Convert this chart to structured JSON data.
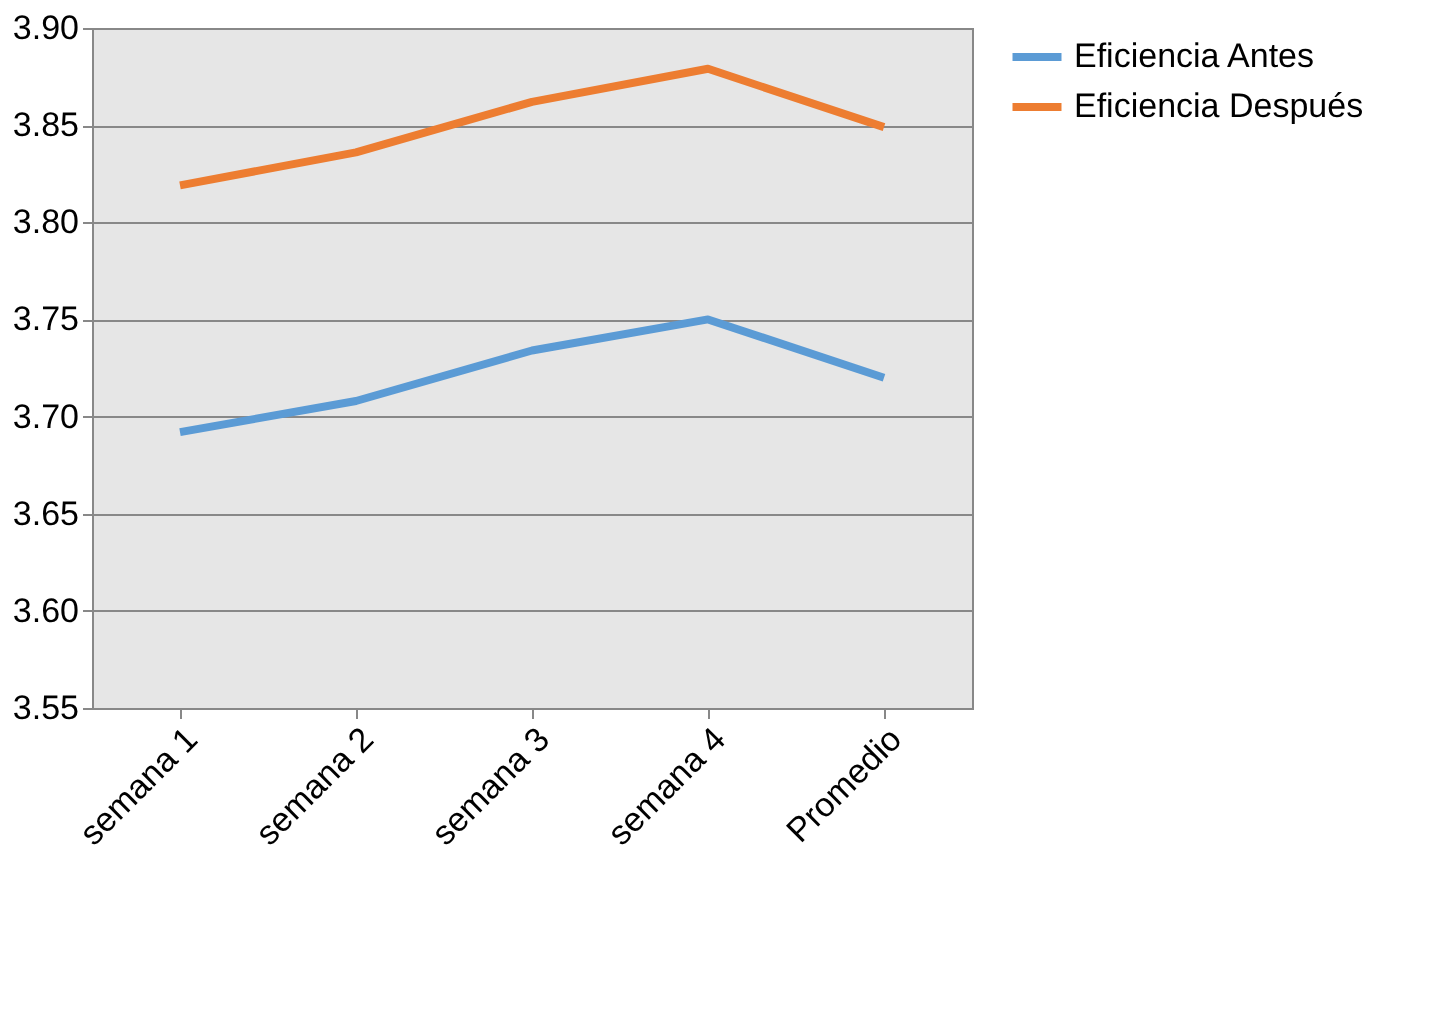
{
  "chart_data": {
    "type": "line",
    "categories": [
      "semana 1",
      "semana 2",
      "semana 3",
      "semana 4",
      "Promedio"
    ],
    "series": [
      {
        "name": "Eficiencia Antes",
        "color": "#5b9bd5",
        "values": [
          3.692,
          3.708,
          3.734,
          3.75,
          3.72
        ]
      },
      {
        "name": "Eficiencia Después",
        "color": "#ed7d31",
        "values": [
          3.819,
          3.836,
          3.862,
          3.879,
          3.849
        ]
      }
    ],
    "ylim": [
      3.55,
      3.9
    ],
    "yticks": [
      {
        "value": 3.55,
        "label": "3.55"
      },
      {
        "value": 3.6,
        "label": "3.60"
      },
      {
        "value": 3.65,
        "label": "3.65"
      },
      {
        "value": 3.7,
        "label": "3.70"
      },
      {
        "value": 3.75,
        "label": "3.75"
      },
      {
        "value": 3.8,
        "label": "3.80"
      },
      {
        "value": 3.85,
        "label": "3.85"
      },
      {
        "value": 3.9,
        "label": "3.90"
      }
    ],
    "grid": "y",
    "legend": "right",
    "marker": "none",
    "line_style": "solid"
  }
}
